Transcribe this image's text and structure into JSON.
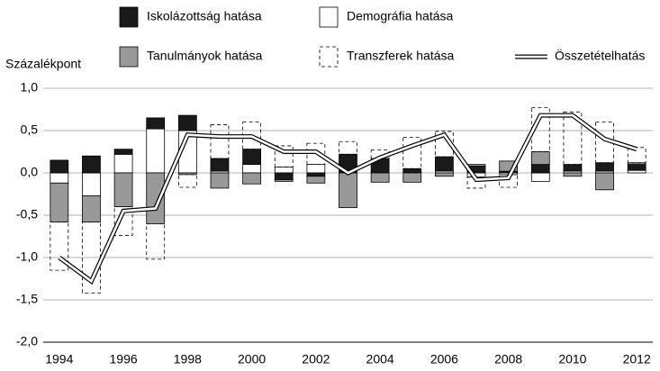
{
  "chart_data": {
    "type": "bar",
    "stacked": true,
    "y_label": "Százalékpont",
    "categories": [
      "1994",
      null,
      "1996",
      null,
      "1998",
      null,
      "2000",
      null,
      "2002",
      null,
      "2004",
      null,
      "2006",
      null,
      "2008",
      null,
      "2010",
      null,
      "2012"
    ],
    "series": [
      {
        "name": "Iskolázottság hatása",
        "color": "#1a1a1a",
        "values": [
          0.15,
          0.2,
          0.06,
          0.13,
          0.18,
          0.15,
          0.18,
          -0.08,
          -0.04,
          0.22,
          0.17,
          0.05,
          0.17,
          0.08,
          0.02,
          0.1,
          0.08,
          0.1,
          0.07
        ]
      },
      {
        "name": "Demográfia hatása",
        "color": "#ffffff",
        "values": [
          -0.12,
          -0.27,
          0.22,
          0.52,
          0.5,
          0.02,
          0.1,
          0.07,
          0.1,
          0.0,
          0.0,
          0.0,
          0.02,
          -0.05,
          -0.02,
          -0.1,
          0.02,
          0.02,
          0.03
        ]
      },
      {
        "name": "Tanulmányok hatása",
        "color": "#999999",
        "values": [
          -0.46,
          -0.31,
          -0.4,
          -0.6,
          -0.02,
          -0.18,
          -0.13,
          -0.02,
          -0.08,
          -0.41,
          -0.11,
          -0.11,
          -0.04,
          0.02,
          0.12,
          0.15,
          -0.04,
          -0.2,
          0.02
        ]
      },
      {
        "name": "Transzferek hatása",
        "color": "none",
        "dashed": true,
        "values": [
          -0.57,
          -0.84,
          -0.34,
          -0.42,
          -0.15,
          0.4,
          0.32,
          0.25,
          0.25,
          0.15,
          0.1,
          0.37,
          0.3,
          -0.13,
          -0.15,
          0.52,
          0.62,
          0.48,
          0.18
        ]
      },
      {
        "name": "Összetételhatás",
        "type": "line",
        "color": "#000000",
        "values": [
          -1.0,
          -1.28,
          -0.45,
          -0.42,
          0.45,
          0.43,
          0.43,
          0.25,
          0.25,
          0.0,
          0.18,
          0.32,
          0.45,
          -0.08,
          -0.06,
          0.68,
          0.68,
          0.4,
          0.28
        ]
      }
    ],
    "ylim": [
      -2,
      1
    ],
    "yticks": [
      {
        "value": 1,
        "label": "1,0"
      },
      {
        "value": 0.5,
        "label": "0,5"
      },
      {
        "value": 0,
        "label": "0,0"
      },
      {
        "value": -0.5,
        "label": "-0,5"
      },
      {
        "value": -1,
        "label": "-1,0"
      },
      {
        "value": -1.5,
        "label": "-1,5"
      },
      {
        "value": -2,
        "label": "-2,0"
      }
    ],
    "grid": true
  }
}
